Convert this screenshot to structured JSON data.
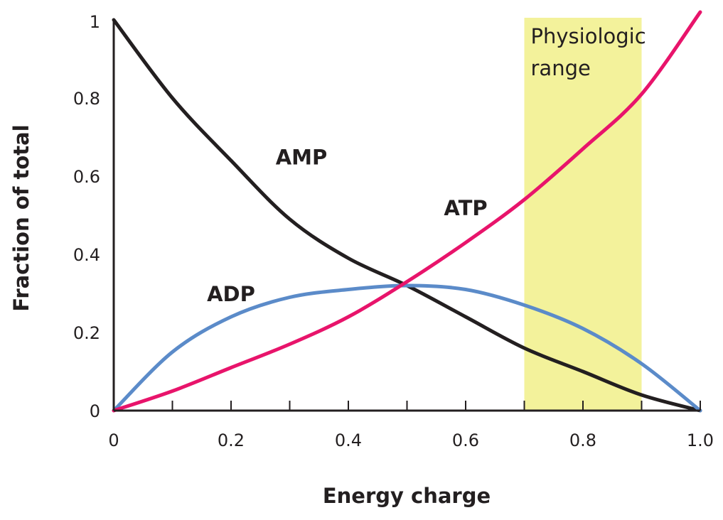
{
  "chart_data": {
    "type": "line",
    "xlabel": "Energy charge",
    "ylabel": "Fraction of total",
    "xlim": [
      0,
      1.0
    ],
    "ylim": [
      0,
      1
    ],
    "x_ticks": [
      0,
      0.1,
      0.2,
      0.3,
      0.4,
      0.5,
      0.6,
      0.7,
      0.8,
      0.9,
      1.0
    ],
    "x_tick_labels": [
      {
        "value": 0,
        "label": "0"
      },
      {
        "value": 0.2,
        "label": "0.2"
      },
      {
        "value": 0.4,
        "label": "0.4"
      },
      {
        "value": 0.6,
        "label": "0.6"
      },
      {
        "value": 0.8,
        "label": "0.8"
      },
      {
        "value": 1.0,
        "label": "1.0"
      }
    ],
    "y_tick_labels": [
      {
        "value": 0,
        "label": "0"
      },
      {
        "value": 0.2,
        "label": "0.2"
      },
      {
        "value": 0.4,
        "label": "0.4"
      },
      {
        "value": 0.6,
        "label": "0.6"
      },
      {
        "value": 0.8,
        "label": "0.8"
      },
      {
        "value": 1,
        "label": "1"
      }
    ],
    "grid": false,
    "x": [
      0,
      0.1,
      0.2,
      0.3,
      0.4,
      0.5,
      0.6,
      0.7,
      0.8,
      0.9,
      1.0
    ],
    "series": [
      {
        "name": "AMP",
        "color": "#231f20",
        "values": [
          1.0,
          0.8,
          0.64,
          0.49,
          0.39,
          0.32,
          0.24,
          0.16,
          0.1,
          0.04,
          0
        ]
      },
      {
        "name": "ADP",
        "color": "#5b8bc9",
        "values": [
          0,
          0.15,
          0.24,
          0.29,
          0.31,
          0.32,
          0.31,
          0.27,
          0.21,
          0.12,
          0
        ]
      },
      {
        "name": "ATP",
        "color": "#e8146b",
        "values": [
          0,
          0.05,
          0.11,
          0.17,
          0.24,
          0.33,
          0.43,
          0.54,
          0.67,
          0.81,
          1.02
        ]
      }
    ],
    "curve_labels": [
      {
        "series": "AMP",
        "text": "AMP",
        "x": 0.32,
        "y": 0.63
      },
      {
        "series": "ATP",
        "text": "ATP",
        "x": 0.6,
        "y": 0.5
      },
      {
        "series": "ADP",
        "text": "ADP",
        "x": 0.2,
        "y": 0.28
      }
    ],
    "highlight_band": {
      "x_range": [
        0.7,
        0.9
      ],
      "color": "#f3f29b",
      "label_lines": [
        "Physiologic",
        "range"
      ]
    }
  }
}
